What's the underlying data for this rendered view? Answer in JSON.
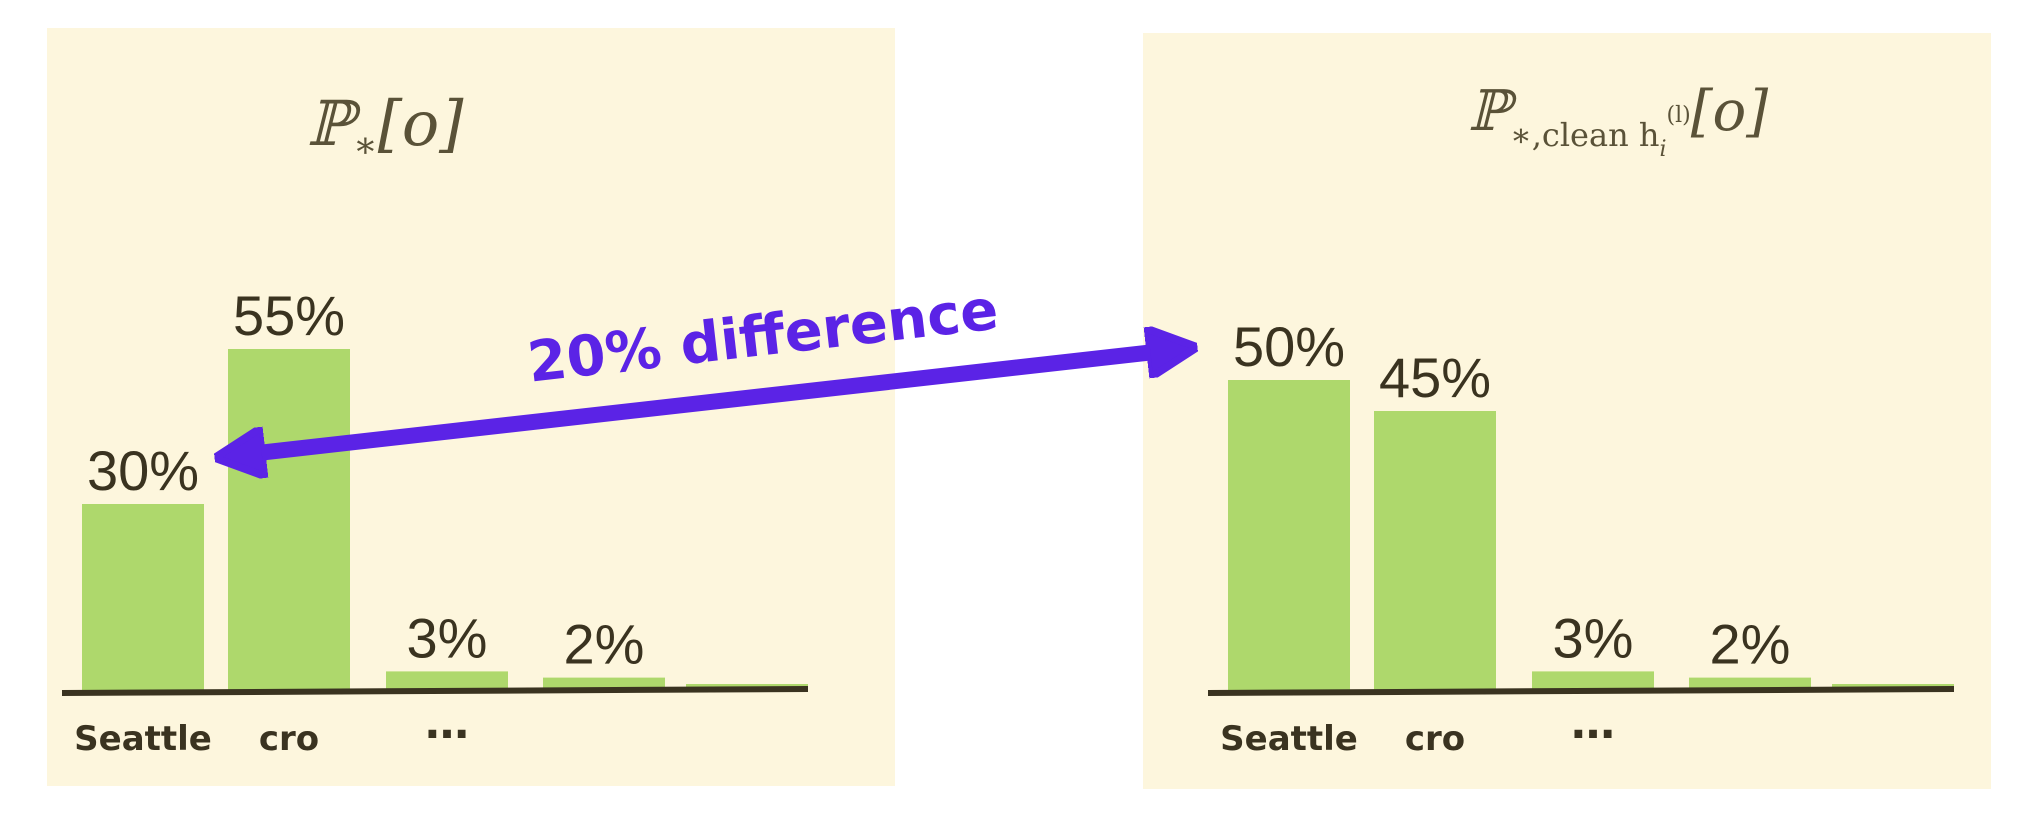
{
  "colors": {
    "panel_background": "#fdf6dd",
    "bar": "#aed86c",
    "baseline": "#3a3320",
    "arrow": "#5b23e6",
    "text": "#3a3320"
  },
  "arrow": {
    "label": "20% difference",
    "from": "left-chart cro",
    "to": "right-chart Seattle"
  },
  "chart_data": [
    {
      "type": "bar",
      "title": "ℙ∗[o]",
      "title_base": "ℙ",
      "title_sub": "∗",
      "title_arg": "[o]",
      "categories": [
        "Seattle",
        "cro",
        "…",
        "",
        ""
      ],
      "values": [
        30,
        55,
        3,
        2,
        0.5
      ],
      "labels": [
        "30%",
        "55%",
        "3%",
        "2%",
        ""
      ],
      "ylim": [
        0,
        60
      ],
      "grid": false
    },
    {
      "type": "bar",
      "title": "ℙ∗,clean h_i^(l)[o]",
      "title_base": "ℙ",
      "title_sub": "∗,clean h",
      "title_sub_i": "i",
      "title_sup": "(l)",
      "title_arg": "[o]",
      "categories": [
        "Seattle",
        "cro",
        "…",
        "",
        ""
      ],
      "values": [
        50,
        45,
        3,
        2,
        0.5
      ],
      "labels": [
        "50%",
        "45%",
        "3%",
        "2%",
        ""
      ],
      "ylim": [
        0,
        60
      ],
      "grid": false
    }
  ]
}
